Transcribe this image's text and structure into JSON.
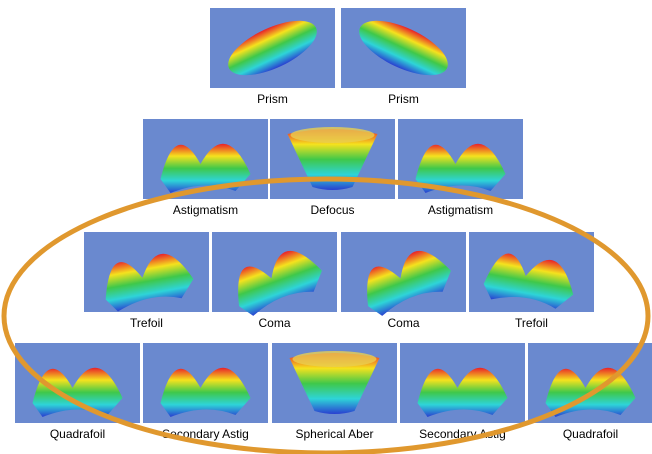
{
  "rows": [
    {
      "items": [
        {
          "label": "Prism"
        },
        {
          "label": "Prism"
        }
      ]
    },
    {
      "items": [
        {
          "label": "Astigmatism"
        },
        {
          "label": "Defocus"
        },
        {
          "label": "Astigmatism"
        }
      ]
    },
    {
      "items": [
        {
          "label": "Trefoil"
        },
        {
          "label": "Coma"
        },
        {
          "label": "Coma"
        },
        {
          "label": "Trefoil"
        }
      ]
    },
    {
      "items": [
        {
          "label": "Quadrafoil"
        },
        {
          "label": "Secondary Astig"
        },
        {
          "label": "Spherical Aber"
        },
        {
          "label": "Secondary Astig"
        },
        {
          "label": "Quadrafoil"
        }
      ]
    }
  ]
}
